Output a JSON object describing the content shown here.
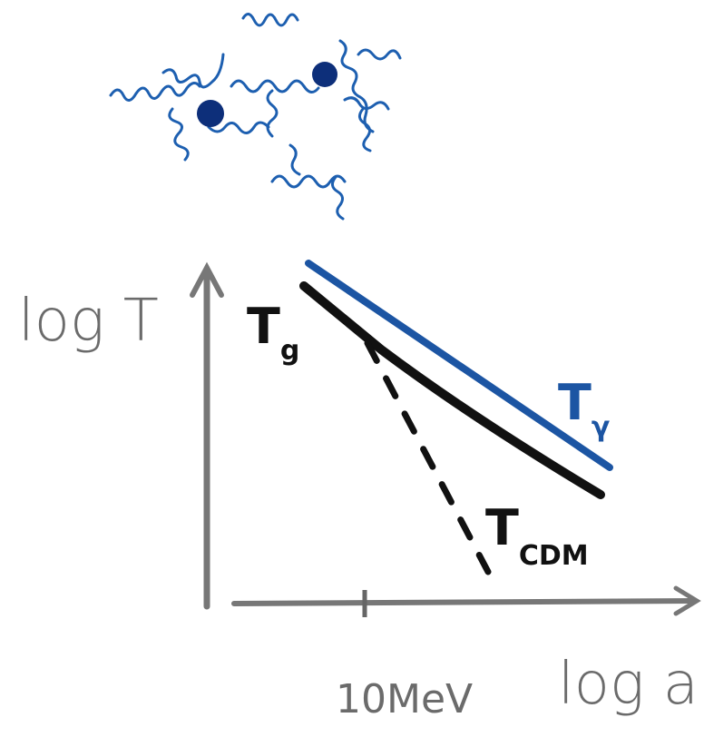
{
  "axes": {
    "y_label": "log T",
    "x_label": "log a",
    "x_tick": "10MeV"
  },
  "curves": {
    "gas": {
      "symbol": "T",
      "subscript": "g"
    },
    "photon": {
      "symbol": "T",
      "subscript": "γ"
    },
    "cdm": {
      "symbol": "T",
      "subscript": "CDM"
    }
  }
}
